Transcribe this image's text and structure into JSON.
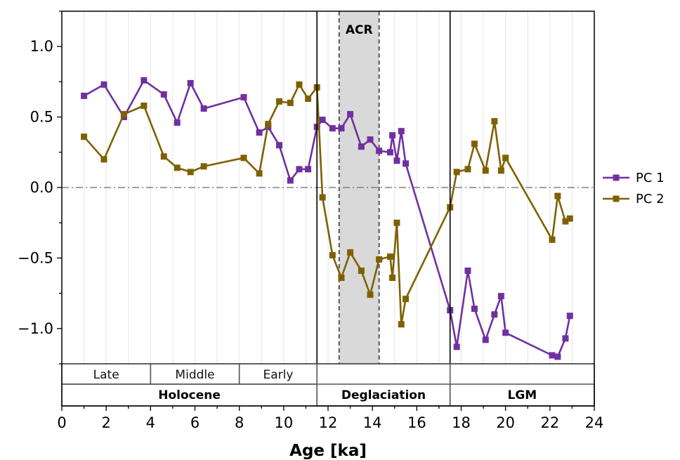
{
  "chart_data": {
    "type": "line",
    "xlabel": "Age [ka]",
    "ylabel": "",
    "xlim": [
      0,
      24
    ],
    "ylim": [
      -1.25,
      1.25
    ],
    "xticks": [
      0,
      2,
      4,
      6,
      8,
      10,
      12,
      14,
      16,
      18,
      20,
      22,
      24
    ],
    "yticks": [
      -1.0,
      -0.5,
      0.0,
      0.5,
      1.0
    ],
    "ytick_labels": [
      "−1.0",
      "−0.5",
      "0.0",
      "0.5",
      "1.0"
    ],
    "grid": "vertical minor lines",
    "zero_line": 0.0,
    "legend_position": "right, outside",
    "series": [
      {
        "name": "PC 1",
        "color": "#7030a0",
        "x": [
          1.0,
          1.9,
          2.8,
          3.7,
          4.6,
          5.2,
          5.8,
          6.4,
          8.2,
          8.9,
          9.3,
          9.8,
          10.3,
          10.7,
          11.1,
          11.5,
          11.75,
          12.2,
          12.6,
          13.0,
          13.5,
          13.9,
          14.3,
          14.8,
          14.9,
          15.1,
          15.3,
          15.5,
          17.5,
          17.8,
          18.3,
          18.6,
          19.1,
          19.5,
          19.8,
          20.0,
          22.1,
          22.35,
          22.7,
          22.9
        ],
        "y": [
          0.65,
          0.73,
          0.5,
          0.76,
          0.66,
          0.46,
          0.74,
          0.56,
          0.64,
          0.39,
          0.43,
          0.3,
          0.05,
          0.13,
          0.13,
          0.43,
          0.48,
          0.42,
          0.42,
          0.52,
          0.29,
          0.34,
          0.26,
          0.25,
          0.37,
          0.19,
          0.4,
          0.17,
          -0.87,
          -1.13,
          -0.59,
          -0.86,
          -1.08,
          -0.9,
          -0.77,
          -1.03,
          -1.19,
          -1.2,
          -1.07,
          -0.91
        ]
      },
      {
        "name": "PC 2",
        "color": "#7f6000",
        "x": [
          1.0,
          1.9,
          2.8,
          3.7,
          4.6,
          5.2,
          5.8,
          6.4,
          8.2,
          8.9,
          9.3,
          9.8,
          10.3,
          10.7,
          11.1,
          11.5,
          11.75,
          12.2,
          12.6,
          13.0,
          13.5,
          13.9,
          14.3,
          14.8,
          14.9,
          15.1,
          15.3,
          15.5,
          17.5,
          17.8,
          18.3,
          18.6,
          19.1,
          19.5,
          19.8,
          20.0,
          22.1,
          22.35,
          22.7,
          22.9
        ],
        "y": [
          0.36,
          0.2,
          0.52,
          0.58,
          0.22,
          0.14,
          0.11,
          0.15,
          0.21,
          0.1,
          0.45,
          0.61,
          0.6,
          0.73,
          0.63,
          0.71,
          -0.07,
          -0.48,
          -0.64,
          -0.46,
          -0.59,
          -0.76,
          -0.51,
          -0.49,
          -0.64,
          -0.25,
          -0.97,
          -0.79,
          -0.14,
          0.11,
          0.13,
          0.31,
          0.12,
          0.47,
          0.12,
          0.21,
          -0.37,
          -0.06,
          -0.24,
          -0.22
        ]
      }
    ],
    "shaded_regions": [
      {
        "label": "ACR",
        "x0": 12.5,
        "x1": 14.3,
        "color": "#d9d9d9"
      }
    ],
    "boundaries": [
      11.5,
      17.5
    ],
    "periods": [
      {
        "label": "Holocene",
        "x0": 0,
        "x1": 11.5
      },
      {
        "label": "Deglaciation",
        "x0": 11.5,
        "x1": 17.5
      },
      {
        "label": "LGM",
        "x0": 17.5,
        "x1": 24
      }
    ],
    "subperiods": [
      {
        "label": "Late",
        "x0": 0,
        "x1": 4
      },
      {
        "label": "Middle",
        "x0": 4,
        "x1": 8
      },
      {
        "label": "Early",
        "x0": 8,
        "x1": 11.5
      }
    ]
  }
}
